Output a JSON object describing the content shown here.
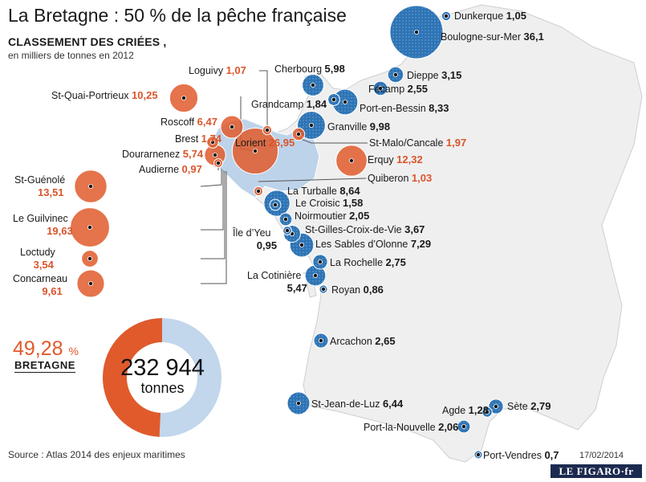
{
  "header": {
    "title": "La Bretagne : 50 % de la pêche française",
    "subtitle": "CLASSEMENT DES CRIÉES ,",
    "unit": "en milliers de tonnes en 2012"
  },
  "summary": {
    "pct_value": "49,28",
    "pct_sign": "%",
    "region": "BRETAGNE",
    "total": "232 944",
    "total_unit": "tonnes",
    "share_fraction": 0.4928
  },
  "colors": {
    "bretagne": "#e05a2c",
    "other": "#2e74b5",
    "land": "#efefef",
    "bretagne_land": "#bdd3ea",
    "donut_rest": "#c2d6ec"
  },
  "ports": [
    {
      "name": "Dunkerque",
      "value": "1,05",
      "region": "other"
    },
    {
      "name": "Boulogne-sur-Mer",
      "value": "36,1",
      "region": "other"
    },
    {
      "name": "Loguivy",
      "value": "1,07",
      "region": "bretagne"
    },
    {
      "name": "Cherbourg",
      "value": "5,98",
      "region": "other"
    },
    {
      "name": "Dieppe",
      "value": "3,15",
      "region": "other"
    },
    {
      "name": "Fécamp",
      "value": "2,55",
      "region": "other"
    },
    {
      "name": "St-Quai-Portrieux",
      "value": "10,25",
      "region": "bretagne"
    },
    {
      "name": "Grandcamp",
      "value": "1,84",
      "region": "other"
    },
    {
      "name": "Port-en-Bessin",
      "value": "8,33",
      "region": "other"
    },
    {
      "name": "Roscoff",
      "value": "6,47",
      "region": "bretagne"
    },
    {
      "name": "Granville",
      "value": "9,98",
      "region": "other"
    },
    {
      "name": "Brest",
      "value": "1,74",
      "region": "bretagne"
    },
    {
      "name": "Lorient",
      "value": "26,95",
      "region": "bretagne"
    },
    {
      "name": "St-Malo/Cancale",
      "value": "1,97",
      "region": "bretagne"
    },
    {
      "name": "Dourarnenez",
      "value": "5,74",
      "region": "bretagne"
    },
    {
      "name": "Erquy",
      "value": "12,32",
      "region": "bretagne"
    },
    {
      "name": "Audierne",
      "value": "0,97",
      "region": "bretagne"
    },
    {
      "name": "Quiberon",
      "value": "1,03",
      "region": "bretagne"
    },
    {
      "name": "St-Guénolé",
      "value": "13,51",
      "region": "bretagne"
    },
    {
      "name": "La Turballe",
      "value": "8,64",
      "region": "other"
    },
    {
      "name": "Le Croisic",
      "value": "1,58",
      "region": "other"
    },
    {
      "name": "Le Guilvinec",
      "value": "19,63",
      "region": "bretagne"
    },
    {
      "name": "Noirmoutier",
      "value": "2,05",
      "region": "other"
    },
    {
      "name": "Île d’Yeu",
      "value": "0,95",
      "region": "other"
    },
    {
      "name": "St-Gilles-Croix-de-Vie",
      "value": "3,67",
      "region": "other"
    },
    {
      "name": "Les Sables d’Olonne",
      "value": "7,29",
      "region": "other"
    },
    {
      "name": "Loctudy",
      "value": "3,54",
      "region": "bretagne"
    },
    {
      "name": "Concarneau",
      "value": "9,61",
      "region": "bretagne"
    },
    {
      "name": "La Rochelle",
      "value": "2,75",
      "region": "other"
    },
    {
      "name": "La Cotinière",
      "value": "5,47",
      "region": "other"
    },
    {
      "name": "Royan",
      "value": "0,86",
      "region": "other"
    },
    {
      "name": "Arcachon",
      "value": "2,65",
      "region": "other"
    },
    {
      "name": "St-Jean-de-Luz",
      "value": "6,44",
      "region": "other"
    },
    {
      "name": "Agde",
      "value": "1,28",
      "region": "other"
    },
    {
      "name": "Sète",
      "value": "2,79",
      "region": "other"
    },
    {
      "name": "Port-la-Nouvelle",
      "value": "2,06",
      "region": "other"
    },
    {
      "name": "Port-Vendres",
      "value": "0,7",
      "region": "other"
    }
  ],
  "footer": {
    "source": "Source : Atlas 2014 des enjeux maritimes",
    "date": "17/02/2014",
    "logo": "LE FIGARO·fr"
  }
}
